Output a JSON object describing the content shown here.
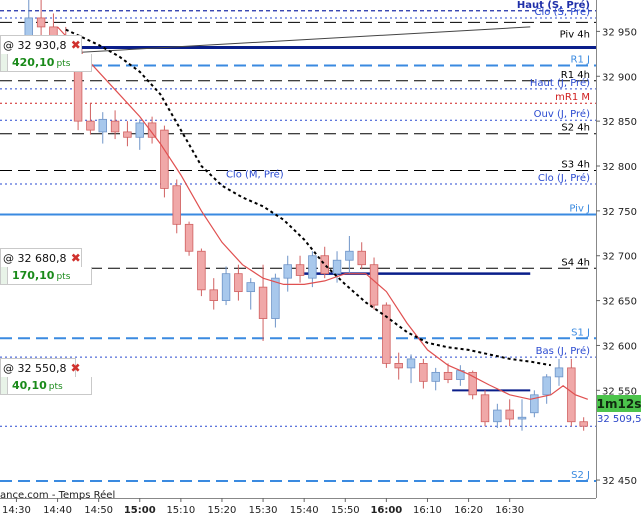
{
  "chart_data": {
    "type": "candlestick",
    "source": "ance.com - Temps Réel",
    "y_axis": {
      "min": 32430,
      "max": 32985,
      "ticks": [
        32950,
        32900,
        32850,
        32800,
        32750,
        32700,
        32650,
        32600,
        32550,
        32450
      ]
    },
    "x_axis": {
      "ticks": [
        {
          "label": "14:30",
          "t": 30,
          "bold": false
        },
        {
          "label": "14:40",
          "t": 40,
          "bold": false
        },
        {
          "label": "14:50",
          "t": 50,
          "bold": false
        },
        {
          "label": "15:00",
          "t": 60,
          "bold": true
        },
        {
          "label": "15:10",
          "t": 70,
          "bold": false
        },
        {
          "label": "15:20",
          "t": 80,
          "bold": false
        },
        {
          "label": "15:30",
          "t": 90,
          "bold": false
        },
        {
          "label": "15:40",
          "t": 100,
          "bold": false
        },
        {
          "label": "15:50",
          "t": 110,
          "bold": false
        },
        {
          "label": "16:00",
          "t": 120,
          "bold": true
        },
        {
          "label": "16:10",
          "t": 130,
          "bold": false
        },
        {
          "label": "16:20",
          "t": 140,
          "bold": false
        },
        {
          "label": "16:30",
          "t": 150,
          "bold": false
        }
      ]
    },
    "levels": [
      {
        "label": "Haut (S, Pré)",
        "value": 32973,
        "color": "#1f2fa8",
        "style": "short-dash",
        "width": 1.2,
        "bold": true
      },
      {
        "label": "Clo (S, Pré)",
        "value": 32965,
        "color": "#2a4ad0",
        "style": "dot",
        "width": 1
      },
      {
        "label": "",
        "value": 32960,
        "color": "#000000",
        "style": "long-dash",
        "width": 1
      },
      {
        "label": "Piv 4h",
        "value": 32940,
        "color": "#000000",
        "style": "none",
        "width": 1
      },
      {
        "label": "",
        "value": 32932,
        "color": "#0a1e8a",
        "style": "solid",
        "width": 3
      },
      {
        "label": "R1 J",
        "value": 32912,
        "color": "#3a8ae0",
        "style": "long-dash",
        "width": 2
      },
      {
        "label": "R1 4h",
        "value": 32895,
        "color": "#000000",
        "style": "long-dash",
        "width": 1
      },
      {
        "label": "Haut (J, Pré)",
        "value": 32886,
        "color": "#2a4ad0",
        "style": "dot",
        "width": 1
      },
      {
        "label": "mR1 M",
        "value": 32870,
        "color": "#d02020",
        "style": "dot",
        "width": 1
      },
      {
        "label": "Ouv (J, Pré)",
        "value": 32851,
        "color": "#2a4ad0",
        "style": "dot",
        "width": 1
      },
      {
        "label": "S2 4h",
        "value": 32836,
        "color": "#000000",
        "style": "long-dash",
        "width": 1
      },
      {
        "label": "S3 4h",
        "value": 32795,
        "color": "#000000",
        "style": "long-dash",
        "width": 1
      },
      {
        "label": "Clo (J, Pré)",
        "value": 32780,
        "color": "#2a4ad0",
        "style": "dot",
        "width": 1
      },
      {
        "label": "Piv J",
        "value": 32746,
        "color": "#3a8ae0",
        "style": "solid",
        "width": 2
      },
      {
        "label": "S4 4h",
        "value": 32686,
        "color": "#000000",
        "style": "long-dash",
        "width": 1
      },
      {
        "label": "S1 J",
        "value": 32608,
        "color": "#3a8ae0",
        "style": "long-dash",
        "width": 2
      },
      {
        "label": "Bas (J, Pré)",
        "value": 32587,
        "color": "#2a4ad0",
        "style": "dot",
        "width": 1
      },
      {
        "label": "",
        "value": 32510,
        "color": "#2a4ad0",
        "style": "dot",
        "width": 1
      },
      {
        "label": "S2 J",
        "value": 32449,
        "color": "#3a8ae0",
        "style": "long-dash",
        "width": 2
      }
    ],
    "segments": [
      {
        "t1": 50,
        "t2": 155,
        "value": 32932,
        "color": "#0a1e8a",
        "width": 3
      },
      {
        "t1": 100,
        "t2": 155,
        "value": 32680,
        "color": "#0a1e8a",
        "width": 2.5
      },
      {
        "t1": 136,
        "t2": 155,
        "value": 32550,
        "color": "#0a1e8a",
        "width": 2
      }
    ],
    "annotations": [
      {
        "label": "Clo (M, Pré)",
        "t": 88,
        "value": 32787,
        "color": "#2a4ad0"
      }
    ],
    "trendline": {
      "t1": 31,
      "v1": 32923,
      "t2": 155,
      "v2": 32955,
      "color": "#444444"
    },
    "candles": [
      {
        "t": 33,
        "o": 32945,
        "h": 32990,
        "l": 32930,
        "c": 32965
      },
      {
        "t": 36,
        "o": 32965,
        "h": 32985,
        "l": 32940,
        "c": 32955
      },
      {
        "t": 39,
        "o": 32955,
        "h": 32970,
        "l": 32935,
        "c": 32942
      },
      {
        "t": 42,
        "o": 32942,
        "h": 32955,
        "l": 32920,
        "c": 32930
      },
      {
        "t": 45,
        "o": 32930,
        "h": 32935,
        "l": 32840,
        "c": 32850
      },
      {
        "t": 48,
        "o": 32850,
        "h": 32870,
        "l": 32835,
        "c": 32840
      },
      {
        "t": 51,
        "o": 32838,
        "h": 32860,
        "l": 32825,
        "c": 32852
      },
      {
        "t": 54,
        "o": 32850,
        "h": 32862,
        "l": 32830,
        "c": 32838
      },
      {
        "t": 57,
        "o": 32838,
        "h": 32850,
        "l": 32822,
        "c": 32832
      },
      {
        "t": 60,
        "o": 32832,
        "h": 32852,
        "l": 32818,
        "c": 32848
      },
      {
        "t": 63,
        "o": 32848,
        "h": 32855,
        "l": 32825,
        "c": 32832
      },
      {
        "t": 66,
        "o": 32840,
        "h": 32845,
        "l": 32765,
        "c": 32775
      },
      {
        "t": 69,
        "o": 32778,
        "h": 32785,
        "l": 32725,
        "c": 32735
      },
      {
        "t": 72,
        "o": 32735,
        "h": 32738,
        "l": 32700,
        "c": 32705
      },
      {
        "t": 75,
        "o": 32705,
        "h": 32708,
        "l": 32655,
        "c": 32662
      },
      {
        "t": 78,
        "o": 32662,
        "h": 32675,
        "l": 32640,
        "c": 32650
      },
      {
        "t": 81,
        "o": 32650,
        "h": 32688,
        "l": 32645,
        "c": 32680
      },
      {
        "t": 84,
        "o": 32680,
        "h": 32690,
        "l": 32650,
        "c": 32660
      },
      {
        "t": 87,
        "o": 32660,
        "h": 32675,
        "l": 32640,
        "c": 32670
      },
      {
        "t": 90,
        "o": 32665,
        "h": 32690,
        "l": 32605,
        "c": 32630
      },
      {
        "t": 93,
        "o": 32630,
        "h": 32680,
        "l": 32620,
        "c": 32675
      },
      {
        "t": 96,
        "o": 32675,
        "h": 32700,
        "l": 32660,
        "c": 32690
      },
      {
        "t": 99,
        "o": 32690,
        "h": 32700,
        "l": 32670,
        "c": 32678
      },
      {
        "t": 102,
        "o": 32675,
        "h": 32705,
        "l": 32665,
        "c": 32700
      },
      {
        "t": 105,
        "o": 32700,
        "h": 32710,
        "l": 32675,
        "c": 32680
      },
      {
        "t": 108,
        "o": 32680,
        "h": 32705,
        "l": 32670,
        "c": 32695
      },
      {
        "t": 111,
        "o": 32695,
        "h": 32722,
        "l": 32680,
        "c": 32705
      },
      {
        "t": 114,
        "o": 32705,
        "h": 32715,
        "l": 32685,
        "c": 32690
      },
      {
        "t": 117,
        "o": 32690,
        "h": 32698,
        "l": 32640,
        "c": 32645
      },
      {
        "t": 120,
        "o": 32645,
        "h": 32648,
        "l": 32575,
        "c": 32580
      },
      {
        "t": 123,
        "o": 32580,
        "h": 32592,
        "l": 32562,
        "c": 32575
      },
      {
        "t": 126,
        "o": 32575,
        "h": 32590,
        "l": 32558,
        "c": 32585
      },
      {
        "t": 129,
        "o": 32580,
        "h": 32585,
        "l": 32552,
        "c": 32560
      },
      {
        "t": 132,
        "o": 32560,
        "h": 32575,
        "l": 32550,
        "c": 32570
      },
      {
        "t": 135,
        "o": 32570,
        "h": 32580,
        "l": 32558,
        "c": 32562
      },
      {
        "t": 138,
        "o": 32562,
        "h": 32578,
        "l": 32555,
        "c": 32572
      },
      {
        "t": 141,
        "o": 32570,
        "h": 32572,
        "l": 32540,
        "c": 32545
      },
      {
        "t": 144,
        "o": 32545,
        "h": 32550,
        "l": 32510,
        "c": 32515
      },
      {
        "t": 147,
        "o": 32515,
        "h": 32535,
        "l": 32508,
        "c": 32528
      },
      {
        "t": 150,
        "o": 32528,
        "h": 32540,
        "l": 32510,
        "c": 32518
      },
      {
        "t": 153,
        "o": 32518,
        "h": 32540,
        "l": 32505,
        "c": 32520
      },
      {
        "t": 156,
        "o": 32525,
        "h": 32550,
        "l": 32520,
        "c": 32545
      },
      {
        "t": 159,
        "o": 32545,
        "h": 32568,
        "l": 32535,
        "c": 32565
      },
      {
        "t": 162,
        "o": 32565,
        "h": 32585,
        "l": 32555,
        "c": 32575
      },
      {
        "t": 165,
        "o": 32575,
        "h": 32585,
        "l": 32510,
        "c": 32515
      },
      {
        "t": 168,
        "o": 32515,
        "h": 32520,
        "l": 32505,
        "c": 32510
      }
    ],
    "ma_red": {
      "color": "#e05050",
      "points": [
        [
          40,
          32955
        ],
        [
          45,
          32930
        ],
        [
          50,
          32905
        ],
        [
          55,
          32880
        ],
        [
          60,
          32855
        ],
        [
          65,
          32825
        ],
        [
          70,
          32790
        ],
        [
          75,
          32750
        ],
        [
          80,
          32715
        ],
        [
          85,
          32690
        ],
        [
          90,
          32675
        ],
        [
          95,
          32668
        ],
        [
          100,
          32668
        ],
        [
          105,
          32672
        ],
        [
          110,
          32680
        ],
        [
          115,
          32680
        ],
        [
          120,
          32660
        ],
        [
          125,
          32625
        ],
        [
          130,
          32595
        ],
        [
          135,
          32578
        ],
        [
          140,
          32568
        ],
        [
          145,
          32556
        ],
        [
          150,
          32545
        ],
        [
          155,
          32540
        ],
        [
          160,
          32545
        ],
        [
          163,
          32555
        ],
        [
          166,
          32545
        ],
        [
          169,
          32540
        ]
      ]
    },
    "ma_black": {
      "color": "#000000",
      "points": [
        [
          42,
          32952
        ],
        [
          50,
          32935
        ],
        [
          55,
          32922
        ],
        [
          60,
          32905
        ],
        [
          65,
          32880
        ],
        [
          70,
          32840
        ],
        [
          75,
          32800
        ],
        [
          80,
          32778
        ],
        [
          85,
          32765
        ],
        [
          90,
          32755
        ],
        [
          95,
          32740
        ],
        [
          100,
          32718
        ],
        [
          105,
          32690
        ],
        [
          110,
          32668
        ],
        [
          115,
          32648
        ],
        [
          120,
          32632
        ],
        [
          125,
          32615
        ],
        [
          130,
          32603
        ],
        [
          135,
          32598
        ],
        [
          140,
          32595
        ],
        [
          145,
          32590
        ],
        [
          150,
          32585
        ],
        [
          155,
          32582
        ],
        [
          160,
          32578
        ]
      ]
    },
    "x_range": {
      "t_min": 26,
      "t_max": 171
    }
  },
  "orders": [
    {
      "price": "@ 32 930,8",
      "pts": "420,10",
      "unit": "pts"
    },
    {
      "price": "@ 32 680,8",
      "pts": "170,10",
      "unit": "pts"
    },
    {
      "price": "@ 32 550,8",
      "pts": "40,10",
      "unit": "pts"
    }
  ],
  "timer": "1m12s",
  "last_price": "32 509,5"
}
